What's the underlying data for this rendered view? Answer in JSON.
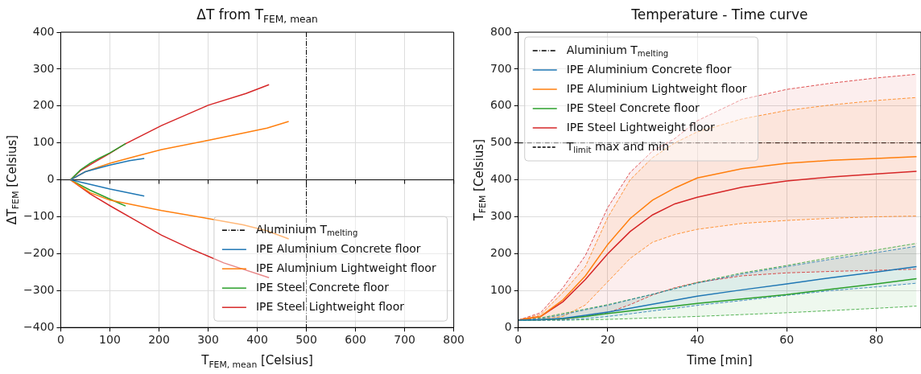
{
  "chart_data": [
    {
      "type": "line",
      "title": "ΔT from T$_{FEM, mean}$",
      "xlabel": "T$_{FEM, mean}$ [Celsius]",
      "ylabel": "ΔT$_{FEM}$ [Celsius]",
      "xlim": [
        0,
        800
      ],
      "xticks": [
        0,
        100,
        200,
        300,
        400,
        500,
        600,
        700,
        800
      ],
      "ylim": [
        -400,
        400
      ],
      "yticks": [
        -400,
        -300,
        -200,
        -100,
        0,
        100,
        200,
        300,
        400
      ],
      "grid": true,
      "legend": "bottom right",
      "ref_lines": [
        {
          "axis": "x",
          "value": 500,
          "label": "Aluminium T$_{melting}$",
          "color": "#000000"
        },
        {
          "axis": "y",
          "value": 0,
          "color": "#000000",
          "line_style": "solid"
        }
      ],
      "series": [
        {
          "name": "IPE Aluminium Concrete floor",
          "color": "#1f77b4",
          "x": [
            20,
            50,
            100,
            140,
            170
          ],
          "values": [
            0,
            22,
            40,
            52,
            58
          ]
        },
        {
          "name": "IPE Aluminium Lightweight floor",
          "color": "#ff7f0e",
          "x": [
            20,
            50,
            100,
            150,
            205,
            300,
            377,
            420,
            464
          ],
          "values": [
            0,
            22,
            45,
            63,
            82,
            107,
            128,
            140,
            158
          ]
        },
        {
          "name": "IPE Steel Concrete floor",
          "color": "#2ca02c",
          "x": [
            20,
            40,
            60,
            80,
            100,
            132
          ],
          "values": [
            0,
            27,
            45,
            60,
            73,
            98
          ]
        },
        {
          "name": "IPE Steel Lightweight floor",
          "color": "#d62728",
          "x": [
            20,
            40,
            65,
            100,
            129,
            205,
            300,
            377,
            424
          ],
          "values": [
            0,
            25,
            45,
            72,
            96,
            147,
            202,
            234,
            258
          ]
        },
        {
          "color": "#1f77b4",
          "x": [
            20,
            100,
            170
          ],
          "values": [
            0,
            -25,
            -44
          ]
        },
        {
          "color": "#ff7f0e",
          "x": [
            20,
            60,
            100,
            205,
            300,
            371,
            420,
            464
          ],
          "values": [
            0,
            -35,
            -55,
            -83,
            -105,
            -122,
            -138,
            -160
          ]
        },
        {
          "color": "#2ca02c",
          "x": [
            20,
            60,
            100,
            132
          ],
          "values": [
            0,
            -28,
            -52,
            -71
          ]
        },
        {
          "color": "#d62728",
          "x": [
            20,
            60,
            100,
            150,
            205,
            270,
            332,
            424
          ],
          "values": [
            0,
            -38,
            -70,
            -108,
            -150,
            -190,
            -225,
            -265
          ]
        }
      ]
    },
    {
      "type": "line",
      "title": "Temperature - Time curve",
      "xlabel": "Time [min]",
      "ylabel": "T$_{FEM}$ [Celsius]",
      "xlim": [
        0,
        90
      ],
      "xticks": [
        0,
        20,
        40,
        60,
        80
      ],
      "ylim": [
        0,
        800
      ],
      "yticks": [
        0,
        100,
        200,
        300,
        400,
        500,
        600,
        700,
        800
      ],
      "grid": true,
      "legend": "top left",
      "ref_lines": [
        {
          "axis": "y",
          "value": 500,
          "label": "Aluminium T$_{melting}$",
          "color": "#000000"
        }
      ],
      "annotations": [
        "T$_{limit}$ max and min"
      ],
      "x": [
        0,
        5,
        10,
        15,
        20,
        25,
        30,
        35,
        40,
        50,
        60,
        70,
        80,
        89
      ],
      "series": [
        {
          "name": "IPE Aluminium Concrete floor",
          "color": "#1f77b4",
          "values": [
            20,
            21,
            25,
            33,
            42,
            52,
            63,
            74,
            85,
            102,
            118,
            135,
            150,
            165
          ],
          "upper": [
            20,
            24,
            35,
            48,
            60,
            75,
            90,
            105,
            120,
            145,
            165,
            185,
            203,
            220
          ],
          "lower": [
            20,
            20,
            20,
            24,
            30,
            37,
            45,
            52,
            60,
            73,
            87,
            100,
            110,
            120
          ]
        },
        {
          "name": "IPE Aluminium Lightweight floor",
          "color": "#ff7f0e",
          "values": [
            20,
            30,
            75,
            140,
            225,
            295,
            345,
            378,
            405,
            430,
            445,
            453,
            458,
            463
          ],
          "upper": [
            20,
            35,
            95,
            165,
            298,
            400,
            460,
            500,
            530,
            565,
            588,
            603,
            615,
            623
          ],
          "lower": [
            20,
            22,
            30,
            61,
            124,
            187,
            231,
            252,
            266,
            282,
            290,
            296,
            300,
            302
          ]
        },
        {
          "name": "IPE Steel Concrete floor",
          "color": "#2ca02c",
          "values": [
            20,
            21,
            24,
            30,
            38,
            45,
            52,
            58,
            65,
            77,
            89,
            104,
            118,
            132
          ],
          "upper": [
            20,
            26,
            38,
            50,
            62,
            76,
            90,
            106,
            122,
            148,
            168,
            190,
            210,
            228
          ],
          "lower": [
            20,
            20,
            20,
            21,
            22,
            24,
            26,
            28,
            30,
            35,
            40,
            46,
            52,
            58
          ]
        },
        {
          "name": "IPE Steel Lightweight floor",
          "color": "#d62728",
          "values": [
            20,
            30,
            70,
            130,
            200,
            260,
            305,
            335,
            353,
            380,
            397,
            408,
            416,
            423
          ],
          "upper": [
            20,
            40,
            108,
            195,
            325,
            420,
            478,
            512,
            560,
            618,
            645,
            662,
            676,
            686
          ],
          "lower": [
            20,
            20,
            22,
            30,
            40,
            62,
            88,
            108,
            122,
            140,
            148,
            152,
            155,
            158
          ]
        },
        {
          "color": "#1f77b4",
          "line_style": "dashed",
          "values": [
            20,
            24,
            35,
            48,
            60,
            75,
            90,
            105,
            120,
            145,
            165,
            185,
            203,
            220
          ]
        },
        {
          "color": "#1f77b4",
          "line_style": "dashed",
          "values": [
            20,
            20,
            20,
            24,
            30,
            37,
            45,
            52,
            60,
            73,
            87,
            100,
            110,
            120
          ]
        },
        {
          "color": "#ff7f0e",
          "line_style": "dashed",
          "values": [
            20,
            35,
            95,
            165,
            298,
            400,
            460,
            500,
            530,
            565,
            588,
            603,
            615,
            623
          ]
        },
        {
          "color": "#ff7f0e",
          "line_style": "dashed",
          "values": [
            20,
            22,
            30,
            61,
            124,
            187,
            231,
            252,
            266,
            282,
            290,
            296,
            300,
            302
          ]
        },
        {
          "color": "#2ca02c",
          "line_style": "dashed",
          "values": [
            20,
            26,
            38,
            50,
            62,
            76,
            90,
            106,
            122,
            148,
            168,
            190,
            210,
            228
          ]
        },
        {
          "color": "#2ca02c",
          "line_style": "dashed",
          "values": [
            20,
            20,
            20,
            21,
            22,
            24,
            26,
            28,
            30,
            35,
            40,
            46,
            52,
            58
          ]
        },
        {
          "color": "#d62728",
          "line_style": "dashed",
          "values": [
            20,
            40,
            108,
            195,
            325,
            420,
            478,
            512,
            560,
            618,
            645,
            662,
            676,
            686
          ]
        },
        {
          "color": "#d62728",
          "line_style": "dashed",
          "values": [
            20,
            20,
            22,
            30,
            40,
            62,
            88,
            108,
            122,
            140,
            148,
            152,
            155,
            158
          ]
        }
      ]
    }
  ]
}
